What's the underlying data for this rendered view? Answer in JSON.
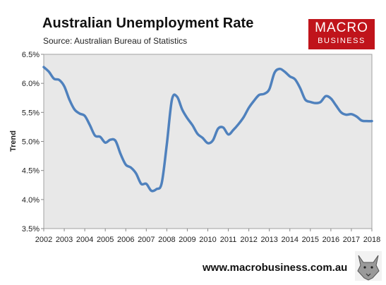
{
  "header": {
    "title": "Australian Unemployment Rate",
    "subtitle": "Source: Australian Bureau of Statistics"
  },
  "logo": {
    "line1": "MACRO",
    "line2": "BUSINESS",
    "color": "#c0141b"
  },
  "footer": {
    "url": "www.macrobusiness.com.au",
    "mascot_icon": "wolf-icon"
  },
  "chart_data": {
    "type": "line",
    "title": "Australian Unemployment Rate",
    "xlabel": "",
    "ylabel": "Trend",
    "xlim": [
      2002,
      2018
    ],
    "ylim": [
      3.5,
      6.5
    ],
    "x_ticks": [
      2002,
      2003,
      2004,
      2005,
      2006,
      2007,
      2008,
      2009,
      2010,
      2011,
      2012,
      2013,
      2014,
      2015,
      2016,
      2017,
      2018
    ],
    "y_ticks": [
      {
        "value": 3.5,
        "label": "3.5%"
      },
      {
        "value": 4.0,
        "label": "4.0%"
      },
      {
        "value": 4.5,
        "label": "4.5%"
      },
      {
        "value": 5.0,
        "label": "5.0%"
      },
      {
        "value": 5.5,
        "label": "5.5%"
      },
      {
        "value": 6.0,
        "label": "6.0%"
      },
      {
        "value": 6.5,
        "label": "6.5%"
      }
    ],
    "grid": false,
    "plot_background": "#e8e8e8",
    "line_color": "#4f81bd",
    "series": [
      {
        "x": [
          2002.0,
          2002.25,
          2002.5,
          2002.75,
          2003.0,
          2003.25,
          2003.5,
          2003.75,
          2004.0,
          2004.25,
          2004.5,
          2004.75,
          2005.0,
          2005.25,
          2005.5,
          2005.75,
          2006.0,
          2006.25,
          2006.5,
          2006.75,
          2007.0,
          2007.25,
          2007.5,
          2007.75,
          2008.0,
          2008.25,
          2008.5,
          2008.75,
          2009.0,
          2009.25,
          2009.5,
          2009.75,
          2010.0,
          2010.25,
          2010.5,
          2010.75,
          2011.0,
          2011.25,
          2011.5,
          2011.75,
          2012.0,
          2012.25,
          2012.5,
          2012.75,
          2013.0,
          2013.25,
          2013.5,
          2013.75,
          2014.0,
          2014.25,
          2014.5,
          2014.75,
          2015.0,
          2015.25,
          2015.5,
          2015.75,
          2016.0,
          2016.25,
          2016.5,
          2016.75,
          2017.0,
          2017.25,
          2017.5,
          2017.75,
          2018.0
        ],
        "values": [
          6.28,
          6.2,
          6.08,
          6.06,
          5.95,
          5.72,
          5.55,
          5.48,
          5.44,
          5.28,
          5.1,
          5.08,
          4.98,
          5.03,
          5.01,
          4.78,
          4.6,
          4.55,
          4.45,
          4.27,
          4.27,
          4.15,
          4.18,
          4.28,
          4.95,
          5.72,
          5.77,
          5.55,
          5.4,
          5.28,
          5.13,
          5.06,
          4.97,
          5.02,
          5.22,
          5.24,
          5.12,
          5.2,
          5.3,
          5.42,
          5.58,
          5.7,
          5.8,
          5.82,
          5.9,
          6.18,
          6.25,
          6.2,
          6.12,
          6.07,
          5.92,
          5.72,
          5.68,
          5.66,
          5.68,
          5.78,
          5.74,
          5.62,
          5.5,
          5.46,
          5.47,
          5.43,
          5.36,
          5.35,
          5.35
        ]
      }
    ]
  }
}
